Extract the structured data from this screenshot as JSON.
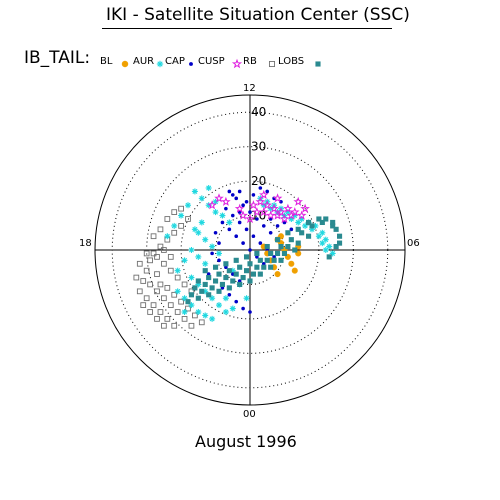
{
  "header": {
    "title": "IKI - Satellite Situation Center (SSC)"
  },
  "legend": {
    "label": "IB_TAIL:",
    "entries": [
      {
        "name": "BL",
        "color": "#000000",
        "symbol": "none"
      },
      {
        "name": "AUR",
        "color": "#f0a000",
        "symbol": "sun"
      },
      {
        "name": "CAP",
        "color": "#20d8e0",
        "symbol": "asterisk"
      },
      {
        "name": "CUSP",
        "color": "#0000c8",
        "symbol": "dot"
      },
      {
        "name": "RB",
        "color": "#e020e0",
        "symbol": "star"
      },
      {
        "name": "LOBS",
        "color": "#707070",
        "symbol": "open-square"
      }
    ],
    "trailing_marker_color": "#2a8a90"
  },
  "footer": {
    "date_label": "August    1996"
  },
  "chart_data": {
    "type": "scatter",
    "projection": "polar",
    "clock_labels": {
      "top": "12",
      "right": "06",
      "bottom": "00",
      "left": "18"
    },
    "radial_ticks": [
      "10",
      "20",
      "30",
      "40"
    ],
    "radial_range": [
      0,
      45
    ],
    "rings_dotted": true,
    "series": [
      {
        "name": "LOBS",
        "color": "#707070",
        "symbol": "open-square",
        "points": [
          [
            -29,
            -3
          ],
          [
            -30,
            -6
          ],
          [
            -31,
            -9
          ],
          [
            -32,
            -12
          ],
          [
            -30,
            -14
          ],
          [
            -28,
            -16
          ],
          [
            -26,
            -18
          ],
          [
            -24,
            -20
          ],
          [
            -22,
            -22
          ],
          [
            -26,
            -10
          ],
          [
            -27,
            -7
          ],
          [
            -25,
            -4
          ],
          [
            -23,
            -2
          ],
          [
            -24,
            -11
          ],
          [
            -22,
            -13
          ],
          [
            -20,
            -15
          ],
          [
            -18,
            -17
          ],
          [
            -16,
            -19
          ],
          [
            -14,
            -21
          ],
          [
            -28,
            -1
          ],
          [
            -26,
            1
          ],
          [
            -24,
            3
          ],
          [
            -22,
            5
          ],
          [
            -20,
            7
          ],
          [
            -18,
            9
          ],
          [
            -27,
            -12
          ],
          [
            -25,
            -14
          ],
          [
            -23,
            -16
          ],
          [
            -21,
            -18
          ],
          [
            -19,
            -20
          ],
          [
            -17,
            -22
          ],
          [
            -29,
            -18
          ],
          [
            -27,
            -20
          ],
          [
            -31,
            -16
          ],
          [
            -25,
            -22
          ],
          [
            -30,
            -1
          ],
          [
            -28,
            4
          ],
          [
            -26,
            6
          ],
          [
            -24,
            9
          ],
          [
            -22,
            11
          ],
          [
            -20,
            12
          ],
          [
            -32,
            -4
          ],
          [
            -33,
            -8
          ],
          [
            -29,
            -10
          ],
          [
            -27,
            -2
          ],
          [
            -25,
            0
          ],
          [
            -23,
            -6
          ],
          [
            -21,
            -8
          ],
          [
            -19,
            -10
          ],
          [
            -17,
            -12
          ]
        ]
      },
      {
        "name": "CAP",
        "color": "#20d8e0",
        "symbol": "asterisk",
        "points": [
          [
            -16,
            17
          ],
          [
            -14,
            15
          ],
          [
            -12,
            13
          ],
          [
            -10,
            11
          ],
          [
            -18,
            13
          ],
          [
            -20,
            10
          ],
          [
            -22,
            7
          ],
          [
            -24,
            4
          ],
          [
            -15,
            5
          ],
          [
            -13,
            3
          ],
          [
            -11,
            1
          ],
          [
            -9,
            -1
          ],
          [
            -17,
            0
          ],
          [
            -15,
            -2
          ],
          [
            -13,
            -4
          ],
          [
            -19,
            -3
          ],
          [
            -21,
            -6
          ],
          [
            -17,
            -8
          ],
          [
            -15,
            -10
          ],
          [
            -13,
            -12
          ],
          [
            -11,
            -14
          ],
          [
            -9,
            -16
          ],
          [
            -7,
            -18
          ],
          [
            -19,
            -14
          ],
          [
            -17,
            -16
          ],
          [
            -15,
            -18
          ],
          [
            -13,
            -19
          ],
          [
            -11,
            -20
          ],
          [
            -6,
            8
          ],
          [
            -8,
            10
          ],
          [
            -10,
            14
          ],
          [
            -12,
            18
          ],
          [
            -14,
            8
          ],
          [
            -16,
            6
          ],
          [
            -5,
            -6
          ],
          [
            -3,
            -10
          ],
          [
            -1,
            -14
          ],
          [
            3,
            15
          ],
          [
            5,
            14
          ],
          [
            7,
            13
          ],
          [
            9,
            12
          ],
          [
            11,
            11
          ],
          [
            13,
            10
          ],
          [
            15,
            9
          ],
          [
            17,
            8
          ],
          [
            19,
            7
          ],
          [
            21,
            5
          ],
          [
            22,
            3
          ],
          [
            23,
            1
          ],
          [
            24,
            -1
          ],
          [
            4,
            13
          ],
          [
            6,
            12
          ],
          [
            8,
            11
          ],
          [
            10,
            10
          ],
          [
            12,
            9
          ],
          [
            14,
            8
          ],
          [
            16,
            7
          ],
          [
            18,
            6
          ],
          [
            20,
            4
          ],
          [
            21,
            2
          ],
          [
            22,
            0
          ],
          [
            -21,
            -12
          ],
          [
            -19,
            -18
          ],
          [
            -7,
            -14
          ],
          [
            -5,
            -17
          ]
        ]
      },
      {
        "name": "CUSP",
        "color": "#0000c8",
        "symbol": "dot",
        "points": [
          [
            -6,
            17
          ],
          [
            -4,
            15
          ],
          [
            -2,
            13
          ],
          [
            0,
            11
          ],
          [
            2,
            9
          ],
          [
            4,
            7
          ],
          [
            6,
            5
          ],
          [
            8,
            3
          ],
          [
            -7,
            12
          ],
          [
            -5,
            10
          ],
          [
            -3,
            8
          ],
          [
            -1,
            6
          ],
          [
            1,
            4
          ],
          [
            3,
            2
          ],
          [
            5,
            0
          ],
          [
            7,
            -2
          ],
          [
            -8,
            8
          ],
          [
            -6,
            6
          ],
          [
            -4,
            4
          ],
          [
            -2,
            2
          ],
          [
            0,
            0
          ],
          [
            2,
            -2
          ],
          [
            4,
            -4
          ],
          [
            -10,
            5
          ],
          [
            -9,
            2
          ],
          [
            -3,
            11
          ],
          [
            -1,
            14
          ],
          [
            1,
            16
          ],
          [
            3,
            18
          ],
          [
            5,
            17
          ],
          [
            7,
            15
          ],
          [
            9,
            14
          ],
          [
            -9,
            -3
          ],
          [
            -7,
            -5
          ],
          [
            -5,
            -7
          ],
          [
            -3,
            -9
          ],
          [
            -11,
            -1
          ],
          [
            -12,
            -7
          ],
          [
            -10,
            -9
          ],
          [
            -8,
            -11
          ],
          [
            -6,
            -13
          ],
          [
            -4,
            -15
          ],
          [
            -2,
            -17
          ],
          [
            0,
            -18
          ],
          [
            10,
            8
          ],
          [
            12,
            6
          ],
          [
            6,
            9
          ],
          [
            8,
            7
          ],
          [
            -5,
            16
          ],
          [
            -3,
            17
          ]
        ]
      },
      {
        "name": "RB",
        "color": "#e020e0",
        "symbol": "star",
        "points": [
          [
            -7,
            14
          ],
          [
            -3,
            12
          ],
          [
            1,
            13
          ],
          [
            3,
            14
          ],
          [
            5,
            13
          ],
          [
            7,
            12
          ],
          [
            9,
            11
          ],
          [
            11,
            12
          ],
          [
            13,
            11
          ],
          [
            15,
            10
          ],
          [
            2,
            11
          ],
          [
            4,
            11
          ],
          [
            6,
            10
          ],
          [
            8,
            10
          ],
          [
            10,
            9
          ],
          [
            12,
            10
          ],
          [
            -9,
            15
          ],
          [
            -11,
            13
          ],
          [
            16,
            12
          ],
          [
            14,
            14
          ],
          [
            4,
            16
          ],
          [
            8,
            15
          ],
          [
            -2,
            10
          ],
          [
            0,
            9
          ]
        ]
      },
      {
        "name": "AUR",
        "color": "#f0a000",
        "symbol": "sun",
        "points": [
          [
            4,
            1
          ],
          [
            5,
            -1
          ],
          [
            6,
            -3
          ],
          [
            7,
            -5
          ],
          [
            8,
            -7
          ],
          [
            9,
            4
          ],
          [
            9,
            2
          ],
          [
            10,
            0
          ],
          [
            11,
            -2
          ],
          [
            12,
            -4
          ],
          [
            13,
            -6
          ],
          [
            8,
            3
          ],
          [
            14,
            1
          ],
          [
            14,
            -1
          ]
        ]
      },
      {
        "name": "",
        "color": "#2a8a90",
        "symbol": "filled-square",
        "role": "orbit tracks",
        "points": [
          [
            -15,
            -9
          ],
          [
            -12,
            -8
          ],
          [
            -9,
            -7
          ],
          [
            -6,
            -6
          ],
          [
            -3,
            -5
          ],
          [
            0,
            -4
          ],
          [
            3,
            -3
          ],
          [
            6,
            -1
          ],
          [
            9,
            1
          ],
          [
            12,
            3
          ],
          [
            15,
            5
          ],
          [
            18,
            7
          ],
          [
            21,
            8
          ],
          [
            24,
            7
          ],
          [
            26,
            4
          ],
          [
            25,
            1
          ],
          [
            23,
            -2
          ],
          [
            -16,
            -11
          ],
          [
            -13,
            -10
          ],
          [
            -10,
            -9
          ],
          [
            -7,
            -8
          ],
          [
            -4,
            -7
          ],
          [
            -1,
            -6
          ],
          [
            2,
            -5
          ],
          [
            5,
            -3
          ],
          [
            8,
            -1
          ],
          [
            11,
            1
          ],
          [
            14,
            2
          ],
          [
            17,
            4
          ],
          [
            -17,
            -13
          ],
          [
            -14,
            -12
          ],
          [
            -11,
            -11
          ],
          [
            -8,
            -10
          ],
          [
            -5,
            -9
          ],
          [
            -2,
            -8
          ],
          [
            1,
            -7
          ],
          [
            4,
            -5
          ],
          [
            7,
            -3
          ],
          [
            10,
            -1
          ],
          [
            13,
            0
          ],
          [
            -18,
            -15
          ],
          [
            -15,
            -14
          ],
          [
            -12,
            -13
          ],
          [
            -9,
            -12
          ],
          [
            -6,
            -11
          ],
          [
            -3,
            -10
          ],
          [
            0,
            -9
          ],
          [
            3,
            -7
          ],
          [
            6,
            -5
          ],
          [
            9,
            -3
          ],
          [
            -13,
            -6
          ],
          [
            -10,
            -5
          ],
          [
            -7,
            -4
          ],
          [
            -4,
            -3
          ],
          [
            -1,
            -2
          ],
          [
            2,
            -1
          ],
          [
            5,
            1
          ],
          [
            8,
            3
          ],
          [
            11,
            5
          ],
          [
            14,
            6
          ],
          [
            17,
            8
          ],
          [
            20,
            9
          ],
          [
            22,
            9
          ],
          [
            24,
            8
          ],
          [
            25,
            6
          ],
          [
            26,
            2
          ]
        ]
      }
    ]
  }
}
